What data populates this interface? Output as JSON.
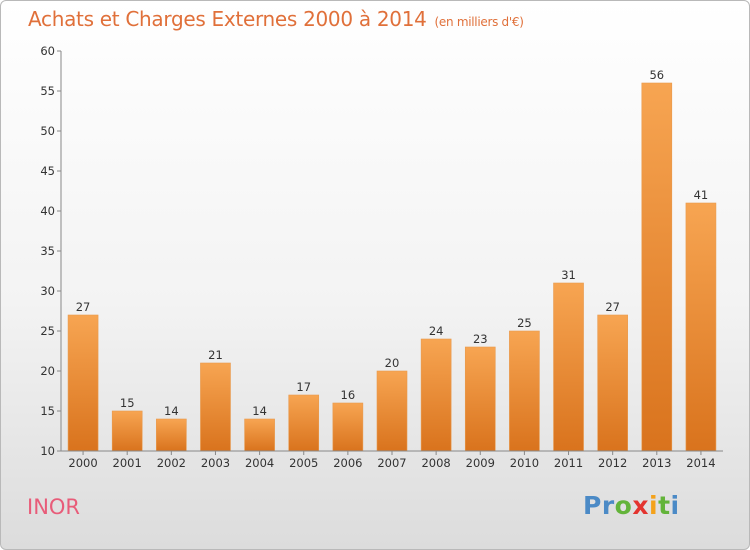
{
  "header": {
    "title": "Achats et Charges Externes 2000 à 2014",
    "unit": "(en milliers d'€)"
  },
  "footer": {
    "commune": "INOR",
    "brand": [
      "P",
      "r",
      "o",
      "x",
      "i",
      "t",
      "i"
    ]
  },
  "colors": {
    "title": "#e0703a",
    "bar_light": "#f7a552",
    "bar_dark": "#d9731d",
    "commune": "#e85c79",
    "brand_letters": [
      "#4b8ac6",
      "#4b8ac6",
      "#63b43a",
      "#e3342f",
      "#f4a21b",
      "#63b43a",
      "#4b8ac6"
    ]
  },
  "chart_data": {
    "type": "bar",
    "title": "Achats et Charges Externes 2000 à 2014",
    "subtitle": "(en milliers d'€)",
    "xlabel": "",
    "ylabel": "",
    "categories": [
      "2000",
      "2001",
      "2002",
      "2003",
      "2004",
      "2005",
      "2006",
      "2007",
      "2008",
      "2009",
      "2010",
      "2011",
      "2012",
      "2013",
      "2014"
    ],
    "values": [
      27,
      15,
      14,
      21,
      14,
      17,
      16,
      20,
      24,
      23,
      25,
      31,
      27,
      56,
      41
    ],
    "ylim": [
      10,
      60
    ],
    "yticks": [
      10,
      15,
      20,
      25,
      30,
      35,
      40,
      45,
      50,
      55,
      60
    ],
    "grid": false,
    "legend": "none"
  }
}
